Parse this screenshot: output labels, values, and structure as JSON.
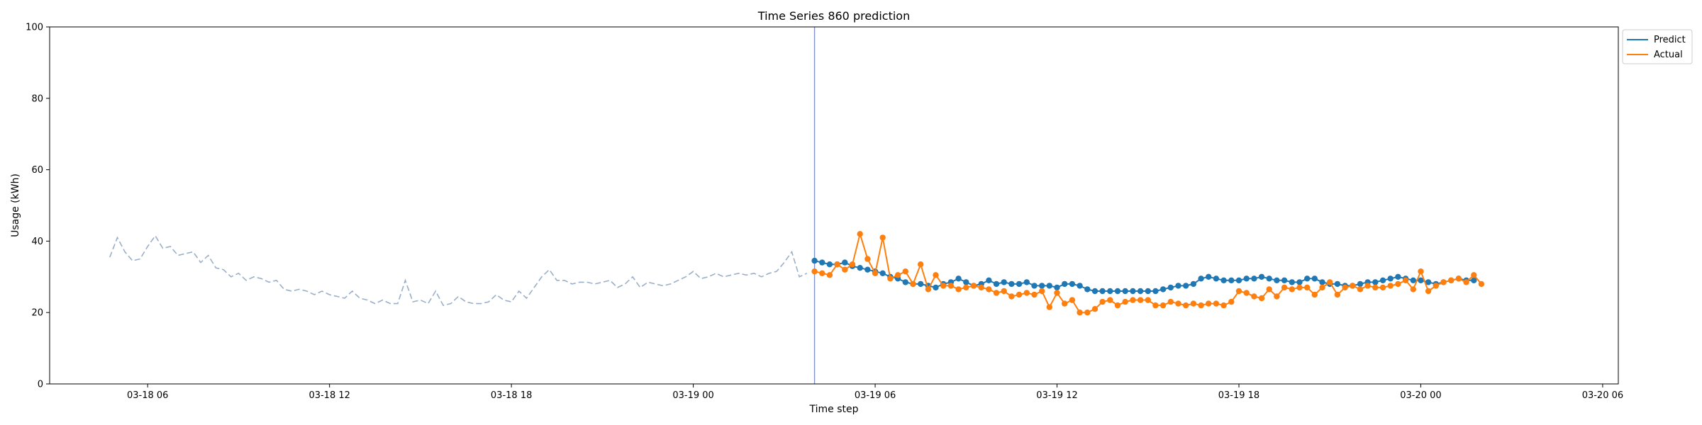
{
  "chart_data": {
    "type": "line",
    "title": "Time Series 860 prediction",
    "xlabel": "Time step",
    "ylabel": "Usage (kWh)",
    "ylim": [
      0,
      100
    ],
    "yticks": [
      0,
      20,
      40,
      60,
      80,
      100
    ],
    "xlim": [
      "2024-03-18T02:46",
      "2024-03-20T06:31"
    ],
    "xticks": [
      {
        "t": "2024-03-18T06:00",
        "label": "03-18 06"
      },
      {
        "t": "2024-03-18T12:00",
        "label": "03-18 12"
      },
      {
        "t": "2024-03-18T18:00",
        "label": "03-18 18"
      },
      {
        "t": "2024-03-19T00:00",
        "label": "03-19 00"
      },
      {
        "t": "2024-03-19T06:00",
        "label": "03-19 06"
      },
      {
        "t": "2024-03-19T12:00",
        "label": "03-19 12"
      },
      {
        "t": "2024-03-19T18:00",
        "label": "03-19 18"
      },
      {
        "t": "2024-03-20T00:00",
        "label": "03-20 00"
      },
      {
        "t": "2024-03-20T06:00",
        "label": "03-20 06"
      }
    ],
    "interval_minutes": 15,
    "forecast_start": "2024-03-19T04:00",
    "legend": {
      "placement": "upper-right-outside",
      "entries": [
        "Predict",
        "Actual"
      ]
    },
    "history": {
      "start": "2024-03-18T04:45",
      "values": [
        35.5,
        41.0,
        37.0,
        34.5,
        35.0,
        38.5,
        41.5,
        38.0,
        38.5,
        36.0,
        36.5,
        37.0,
        34.0,
        36.0,
        32.5,
        32.0,
        30.0,
        31.0,
        29.0,
        30.0,
        29.5,
        28.5,
        29.0,
        26.5,
        26.0,
        26.5,
        26.0,
        25.0,
        26.0,
        25.0,
        24.5,
        24.0,
        26.0,
        24.0,
        23.5,
        22.5,
        23.5,
        22.5,
        22.5,
        29.0,
        23.0,
        23.5,
        22.5,
        26.0,
        22.0,
        22.5,
        24.5,
        23.0,
        22.5,
        22.5,
        23.0,
        25.0,
        23.5,
        23.0,
        26.0,
        24.0,
        27.0,
        30.0,
        32.0,
        29.0,
        29.0,
        28.0,
        28.5,
        28.5,
        28.0,
        28.5,
        29.0,
        27.0,
        28.0,
        30.0,
        27.0,
        28.5,
        28.0,
        27.5,
        28.0,
        29.0,
        30.0,
        31.5,
        29.5,
        30.0,
        31.0,
        30.0,
        30.5,
        31.0,
        30.5,
        31.0,
        30.0,
        31.0,
        31.5,
        34.0,
        37.0,
        30.0,
        31.0
      ]
    },
    "series": [
      {
        "name": "Predict",
        "color": "#1f77b4",
        "start": "2024-03-19T04:00",
        "values": [
          34.5,
          34.0,
          33.5,
          33.5,
          34.0,
          33.0,
          32.5,
          32.0,
          31.5,
          31.0,
          30.0,
          29.5,
          28.5,
          28.0,
          28.0,
          27.5,
          27.0,
          28.0,
          28.5,
          29.5,
          28.5,
          27.5,
          28.0,
          29.0,
          28.0,
          28.5,
          28.0,
          28.0,
          28.5,
          27.5,
          27.5,
          27.5,
          27.0,
          28.0,
          28.0,
          27.5,
          26.5,
          26.0,
          26.0,
          26.0,
          26.0,
          26.0,
          26.0,
          26.0,
          26.0,
          26.0,
          26.5,
          27.0,
          27.5,
          27.5,
          28.0,
          29.5,
          30.0,
          29.5,
          29.0,
          29.0,
          29.0,
          29.5,
          29.5,
          30.0,
          29.5,
          29.0,
          29.0,
          28.5,
          28.5,
          29.5,
          29.5,
          28.5,
          28.0,
          28.0,
          27.5,
          27.5,
          28.0,
          28.5,
          28.5,
          29.0,
          29.5,
          30.0,
          29.5,
          29.0,
          29.0,
          28.5,
          28.0,
          28.5,
          29.0,
          29.5,
          29.0,
          29.0
        ]
      },
      {
        "name": "Actual",
        "color": "#ff7f0e",
        "start": "2024-03-19T04:00",
        "values": [
          31.5,
          31.0,
          30.5,
          33.5,
          32.0,
          33.5,
          42.0,
          35.0,
          31.0,
          41.0,
          29.5,
          30.5,
          31.5,
          28.0,
          33.5,
          26.5,
          30.5,
          27.5,
          27.5,
          26.5,
          27.0,
          27.5,
          27.0,
          26.5,
          25.5,
          26.0,
          24.5,
          25.0,
          25.5,
          25.0,
          26.0,
          21.5,
          25.5,
          22.5,
          23.5,
          20.0,
          20.0,
          21.0,
          23.0,
          23.5,
          22.0,
          23.0,
          23.5,
          23.5,
          23.5,
          22.0,
          22.0,
          23.0,
          22.5,
          22.0,
          22.5,
          22.0,
          22.5,
          22.5,
          22.0,
          23.0,
          26.0,
          25.5,
          24.5,
          24.0,
          26.5,
          24.5,
          27.0,
          26.5,
          27.0,
          27.0,
          25.0,
          27.0,
          28.5,
          25.0,
          27.0,
          27.5,
          26.5,
          27.5,
          27.0,
          27.0,
          27.5,
          28.0,
          29.0,
          26.5,
          31.5,
          26.0,
          27.5,
          28.5,
          29.0,
          29.5,
          28.5,
          30.5,
          28.0
        ]
      }
    ]
  }
}
